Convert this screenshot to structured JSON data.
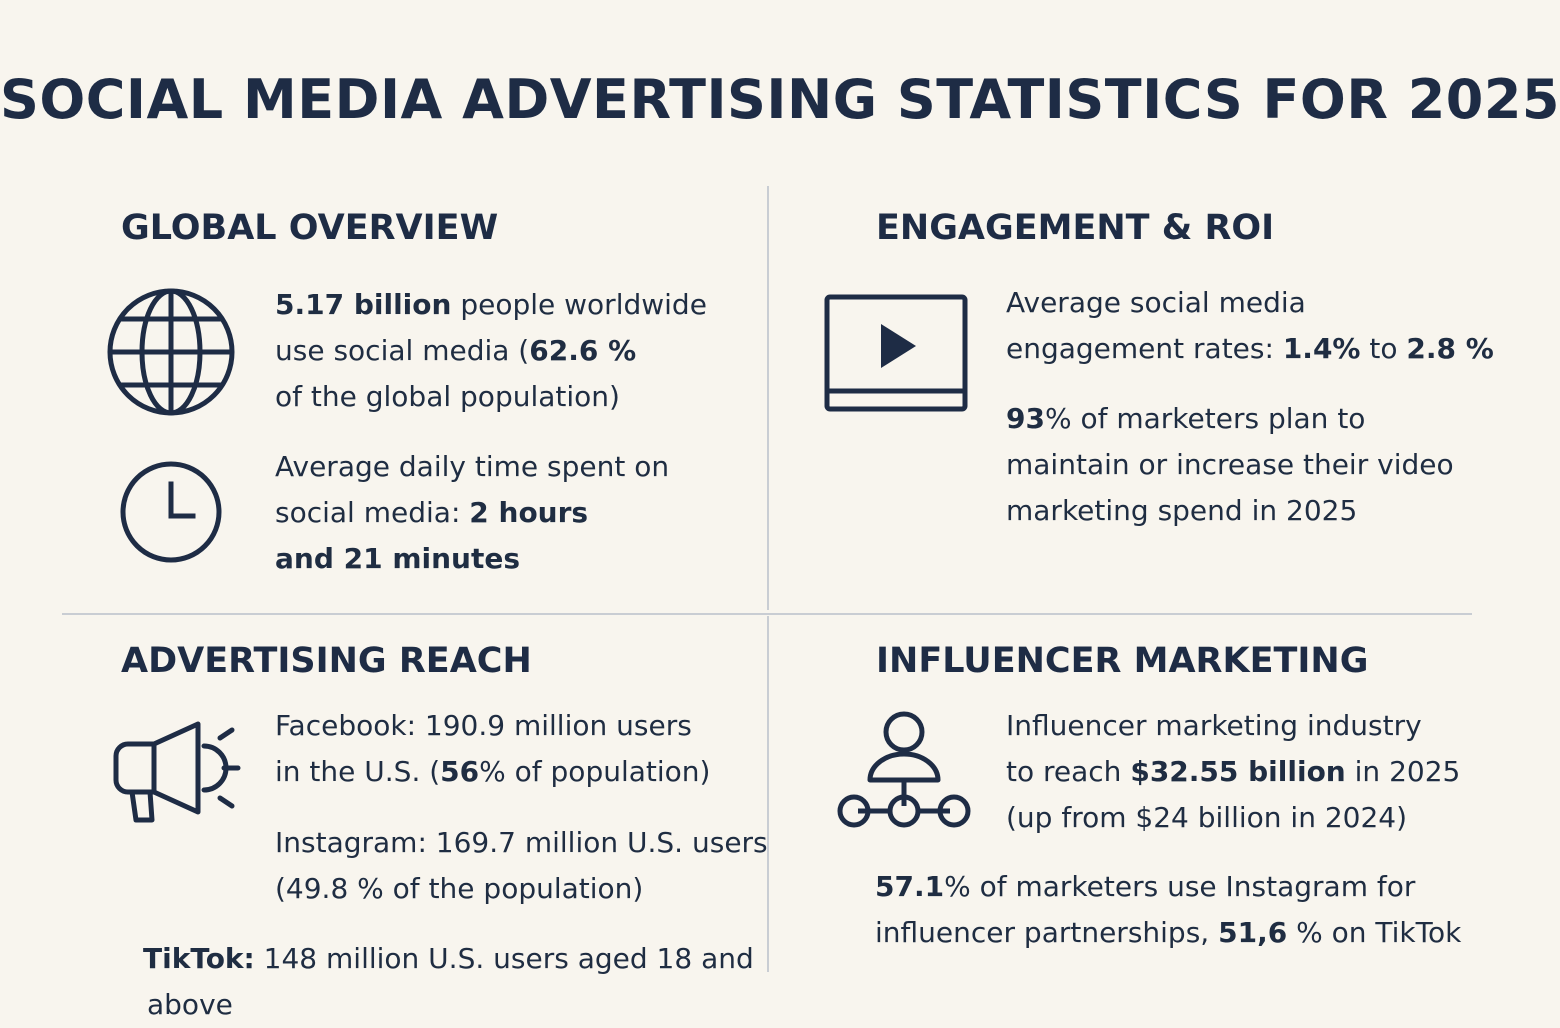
{
  "title": "SOCIAL MEDIA ADVERTISING STATISTICS FOR 2025",
  "icons": [
    "globe-icon",
    "clock-icon",
    "video-play-icon",
    "megaphone-icon",
    "network-person-icon"
  ],
  "colors": {
    "background": "#f8f5ee",
    "ink": "#1e2c45",
    "divider": "#c9cdd3"
  },
  "global": {
    "heading": "GLOBAL OVERVIEW",
    "s1": {
      "b1": "5.17 billion",
      "t1": " people worldwide",
      "t2": "use social media (",
      "b2": "62.6 %",
      "t3": "of the global population)"
    },
    "s2": {
      "t1": "Average daily time spent on",
      "t2": "social media: ",
      "b1": "2 hours",
      "b2": "and 21 minutes"
    }
  },
  "engagement": {
    "heading": "ENGAGEMENT & ROI",
    "s1": {
      "t1": "Average social media",
      "t2": "engagement rates: ",
      "b1": "1.4%",
      "t3": " to ",
      "b2": "2.8 %"
    },
    "s2": {
      "b1": "93",
      "t1": "% of marketers plan to",
      "t2": "maintain or increase their video",
      "t3": "marketing spend in 2025"
    }
  },
  "reach": {
    "heading": "ADVERTISING REACH",
    "s1": {
      "t1": "Facebook: 190.9 million users",
      "t2": "in the U.S. (",
      "b1": "56",
      "t3": "% of population)"
    },
    "s2": {
      "t1": "Instagram: 169.7 million U.S. users",
      "t2": "(49.8 % of the population)"
    },
    "s3": {
      "b1": "TikTok:",
      "t1": " 148 million U.S. users aged 18 and",
      "t2": "above"
    }
  },
  "influencer": {
    "heading": "INFLUENCER MARKETING",
    "s1": {
      "t1": "Influencer marketing industry",
      "t2": "to reach ",
      "b1": "$32.55 billion",
      "t3": " in 2025",
      "t4": "(up from $24 billion in 2024)"
    },
    "s2": {
      "b1": "57.1",
      "t1": "% of marketers use Instagram for",
      "t2": "influencer partnerships, ",
      "b2": "51,6",
      "t3": " % on TikTok"
    }
  }
}
